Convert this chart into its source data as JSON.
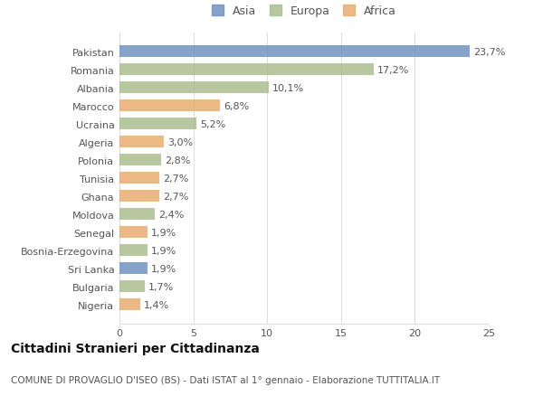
{
  "countries": [
    "Pakistan",
    "Romania",
    "Albania",
    "Marocco",
    "Ucraina",
    "Algeria",
    "Polonia",
    "Tunisia",
    "Ghana",
    "Moldova",
    "Senegal",
    "Bosnia-Erzegovina",
    "Sri Lanka",
    "Bulgaria",
    "Nigeria"
  ],
  "values": [
    23.7,
    17.2,
    10.1,
    6.8,
    5.2,
    3.0,
    2.8,
    2.7,
    2.7,
    2.4,
    1.9,
    1.9,
    1.9,
    1.7,
    1.4
  ],
  "labels": [
    "23,7%",
    "17,2%",
    "10,1%",
    "6,8%",
    "5,2%",
    "3,0%",
    "2,8%",
    "2,7%",
    "2,7%",
    "2,4%",
    "1,9%",
    "1,9%",
    "1,9%",
    "1,7%",
    "1,4%"
  ],
  "continents": [
    "Asia",
    "Europa",
    "Europa",
    "Africa",
    "Europa",
    "Africa",
    "Europa",
    "Africa",
    "Africa",
    "Europa",
    "Africa",
    "Europa",
    "Asia",
    "Europa",
    "Africa"
  ],
  "colors": {
    "Asia": "#6d8fbd",
    "Europa": "#a8bb8a",
    "Africa": "#e8aa6a"
  },
  "title": "Cittadini Stranieri per Cittadinanza",
  "subtitle": "COMUNE DI PROVAGLIO D'ISEO (BS) - Dati ISTAT al 1° gennaio - Elaborazione TUTTITALIA.IT",
  "xlim": [
    0,
    25
  ],
  "xticks": [
    0,
    5,
    10,
    15,
    20,
    25
  ],
  "background_color": "#ffffff",
  "grid_color": "#dddddd",
  "bar_alpha": 0.82,
  "title_fontsize": 10,
  "subtitle_fontsize": 7.5,
  "tick_fontsize": 8,
  "label_fontsize": 8,
  "legend_fontsize": 9
}
